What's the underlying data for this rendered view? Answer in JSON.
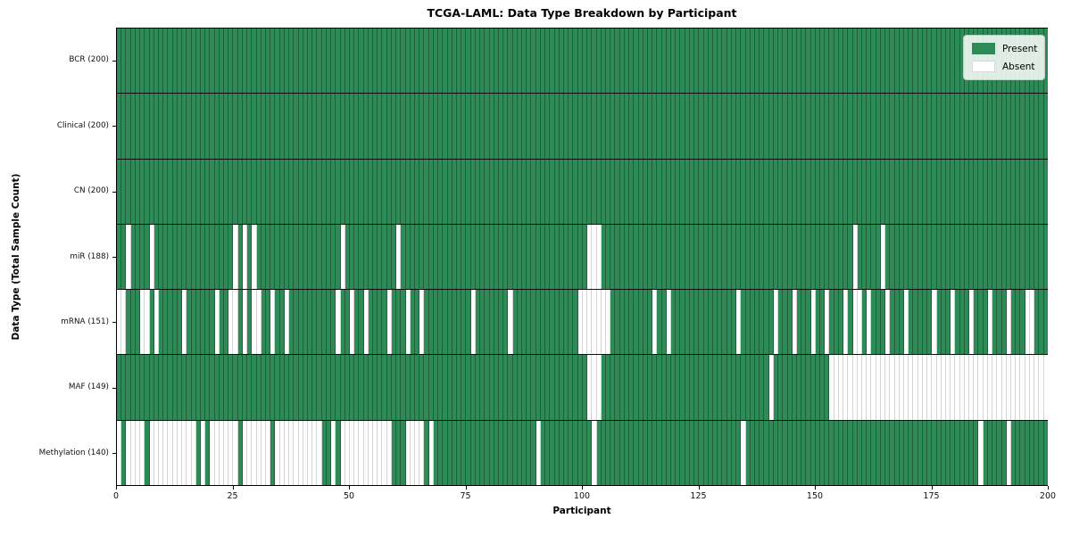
{
  "chart_data": {
    "type": "heatmap",
    "title": "TCGA-LAML: Data Type Breakdown by Participant",
    "xlabel": "Participant",
    "ylabel": "Data Type (Total Sample Count)",
    "x_ticks": [
      0,
      25,
      50,
      75,
      100,
      125,
      150,
      175,
      200
    ],
    "n_participants": 200,
    "xlim": [
      0,
      200
    ],
    "grid": false,
    "legend_position": "upper right",
    "colors": {
      "present": "#2e8b57",
      "absent": "#ffffff"
    },
    "legend": [
      {
        "label": "Present",
        "color": "#2e8b57"
      },
      {
        "label": "Absent",
        "color": "#ffffff"
      }
    ],
    "rows": [
      {
        "name": "BCR",
        "label": "BCR (200)",
        "present_count": 200,
        "absent_count": 0,
        "absent_indices": []
      },
      {
        "name": "Clinical",
        "label": "Clinical (200)",
        "present_count": 200,
        "absent_count": 0,
        "absent_indices": []
      },
      {
        "name": "CN",
        "label": "CN (200)",
        "present_count": 200,
        "absent_count": 0,
        "absent_indices": []
      },
      {
        "name": "miR",
        "label": "miR (188)",
        "present_count": 188,
        "absent_count": 12,
        "absent_indices": [
          2,
          7,
          25,
          27,
          29,
          48,
          60,
          101,
          102,
          103,
          158,
          164
        ]
      },
      {
        "name": "mRNA",
        "label": "mRNA (151)",
        "present_count": 151,
        "absent_count": 49,
        "absent_indices": [
          0,
          1,
          5,
          6,
          8,
          14,
          21,
          24,
          25,
          27,
          29,
          30,
          33,
          36,
          47,
          50,
          53,
          58,
          62,
          65,
          76,
          84,
          99,
          100,
          101,
          102,
          103,
          104,
          105,
          115,
          118,
          133,
          141,
          145,
          149,
          152,
          156,
          158,
          159,
          161,
          165,
          169,
          175,
          179,
          183,
          187,
          191,
          195,
          196
        ]
      },
      {
        "name": "MAF",
        "label": "MAF (149)",
        "present_count": 149,
        "absent_count": 51,
        "absent_indices": [
          101,
          102,
          103,
          140,
          153,
          154,
          155,
          156,
          157,
          158,
          159,
          160,
          161,
          162,
          163,
          164,
          165,
          166,
          167,
          168,
          169,
          170,
          171,
          172,
          173,
          174,
          175,
          176,
          177,
          178,
          179,
          180,
          181,
          182,
          183,
          184,
          185,
          186,
          187,
          188,
          189,
          190,
          191,
          192,
          193,
          194,
          195,
          196,
          197,
          198,
          199
        ]
      },
      {
        "name": "Methylation",
        "label": "Methylation (140)",
        "present_count": 140,
        "absent_count": 60,
        "absent_indices": [
          0,
          2,
          3,
          4,
          5,
          7,
          8,
          9,
          10,
          11,
          12,
          13,
          14,
          15,
          16,
          18,
          20,
          21,
          22,
          23,
          24,
          25,
          27,
          28,
          29,
          30,
          31,
          32,
          34,
          35,
          36,
          37,
          38,
          39,
          40,
          41,
          42,
          43,
          46,
          48,
          49,
          50,
          51,
          52,
          53,
          54,
          55,
          56,
          57,
          58,
          62,
          63,
          64,
          65,
          67,
          90,
          102,
          134,
          185,
          191
        ]
      }
    ]
  }
}
